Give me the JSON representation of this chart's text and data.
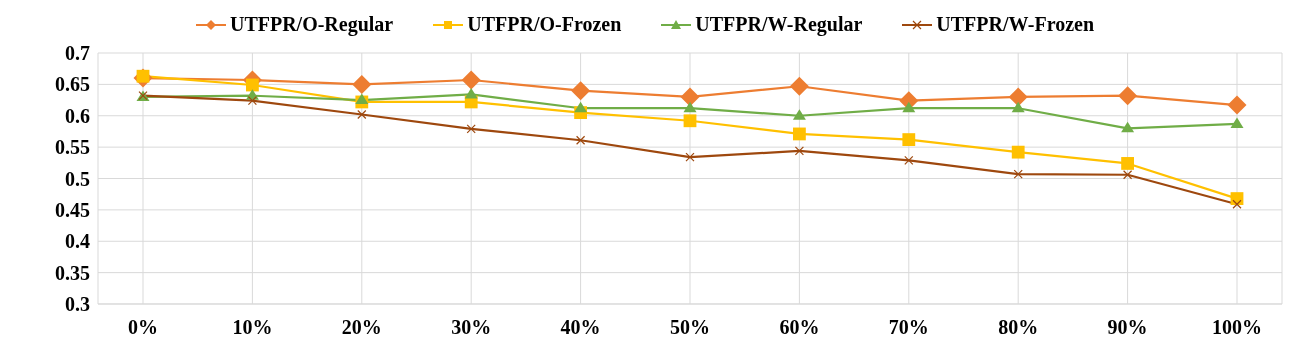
{
  "chart_data": {
    "type": "line",
    "categories": [
      "0%",
      "10%",
      "20%",
      "30%",
      "40%",
      "50%",
      "60%",
      "70%",
      "80%",
      "90%",
      "100%"
    ],
    "series": [
      {
        "name": "UTFPR/O-Regular",
        "color": "#ed7d31",
        "marker": "diamond",
        "values": [
          0.66,
          0.657,
          0.65,
          0.657,
          0.64,
          0.63,
          0.647,
          0.624,
          0.63,
          0.632,
          0.617
        ]
      },
      {
        "name": "UTFPR/O-Frozen",
        "color": "#ffc000",
        "marker": "square",
        "values": [
          0.663,
          0.649,
          0.622,
          0.622,
          0.605,
          0.592,
          0.571,
          0.562,
          0.542,
          0.524,
          0.468
        ]
      },
      {
        "name": "UTFPR/W-Regular",
        "color": "#70ad47",
        "marker": "triangle",
        "values": [
          0.63,
          0.632,
          0.625,
          0.634,
          0.612,
          0.612,
          0.6,
          0.612,
          0.612,
          0.58,
          0.587
        ]
      },
      {
        "name": "UTFPR/W-Frozen",
        "color": "#9e480e",
        "marker": "cross",
        "values": [
          0.632,
          0.624,
          0.602,
          0.579,
          0.561,
          0.534,
          0.544,
          0.529,
          0.507,
          0.506,
          0.459
        ]
      }
    ],
    "ylim": [
      0.3,
      0.7
    ],
    "yticks": [
      0.3,
      0.35,
      0.4,
      0.45,
      0.5,
      0.55,
      0.6,
      0.65,
      0.7
    ],
    "grid": true,
    "legend": "top"
  }
}
